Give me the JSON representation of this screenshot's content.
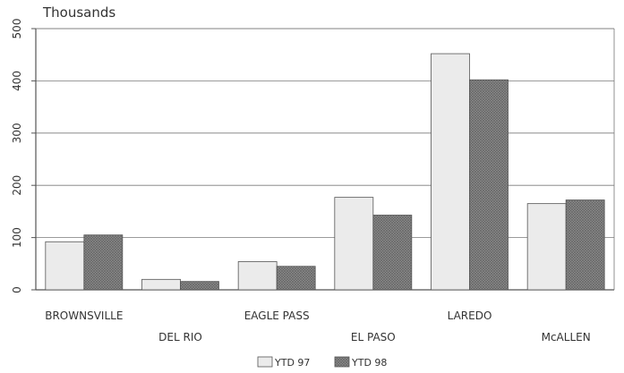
{
  "chart_data": {
    "type": "bar",
    "unit_label": "Thousands",
    "categories": [
      "BROWNSVILLE",
      "DEL RIO",
      "EAGLE PASS",
      "EL PASO",
      "LAREDO",
      "McALLEN"
    ],
    "series": [
      {
        "name": "YTD 97",
        "values": [
          92,
          20,
          54,
          177,
          452,
          165
        ],
        "color": "#ebebeb"
      },
      {
        "name": "YTD 98",
        "values": [
          105,
          16,
          45,
          143,
          402,
          172
        ],
        "color": "#8c8c8c"
      }
    ],
    "ylim": [
      0,
      500
    ],
    "yticks": [
      0,
      100,
      200,
      300,
      400,
      500
    ],
    "grid": true,
    "legend_position": "bottom-center"
  }
}
